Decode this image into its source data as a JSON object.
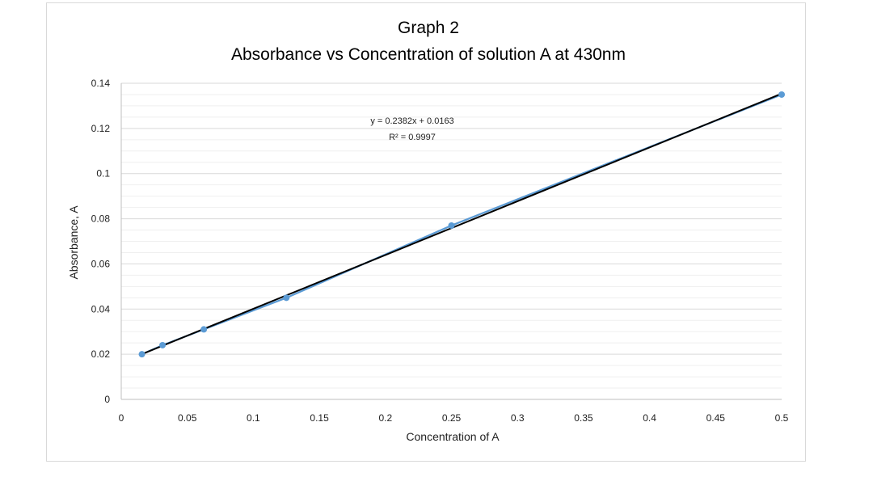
{
  "chart_data": {
    "type": "scatter",
    "title": "Graph 2",
    "subtitle": "Absorbance vs Concentration of solution A at 430nm",
    "xlabel": "Concentration of A",
    "ylabel": "Absorbance, A",
    "xlim": [
      0,
      0.5
    ],
    "ylim": [
      0,
      0.14
    ],
    "x_ticks": [
      "0",
      "0.05",
      "0.1",
      "0.15",
      "0.2",
      "0.25",
      "0.3",
      "0.35",
      "0.4",
      "0.45",
      "0.5"
    ],
    "y_ticks": [
      "0",
      "0.02",
      "0.04",
      "0.06",
      "0.08",
      "0.1",
      "0.12",
      "0.14"
    ],
    "grid": true,
    "series": [
      {
        "name": "Absorbance",
        "color": "#5b9bd5",
        "x": [
          0.015625,
          0.03125,
          0.0625,
          0.125,
          0.25,
          0.5
        ],
        "y": [
          0.02,
          0.024,
          0.031,
          0.045,
          0.077,
          0.135
        ]
      }
    ],
    "trendline": {
      "type": "linear",
      "slope": 0.2382,
      "intercept": 0.0163,
      "color": "#000000",
      "equation": "y = 0.2382x + 0.0163",
      "r_squared": "R² = 0.9997"
    }
  }
}
